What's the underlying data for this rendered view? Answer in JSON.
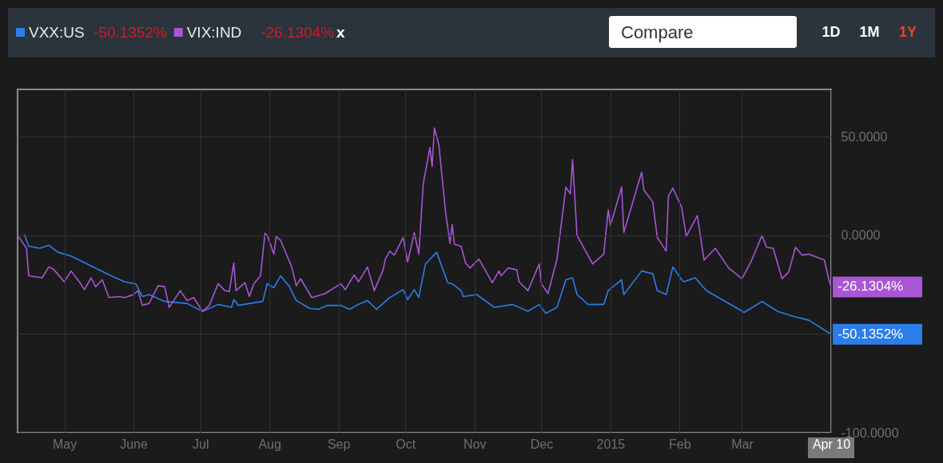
{
  "chart_data": {
    "type": "line",
    "legend": "top left",
    "grid": true,
    "line_style": "solid",
    "xlim": [
      "2014-04-10",
      "2015-04-10"
    ],
    "ylim": [
      -100,
      74
    ],
    "xticks": [
      {
        "value": "2014-05-01",
        "label": "May"
      },
      {
        "value": "2014-06-01",
        "label": "June"
      },
      {
        "value": "2014-07-01",
        "label": "Jul"
      },
      {
        "value": "2014-08-01",
        "label": "Aug"
      },
      {
        "value": "2014-09-01",
        "label": "Sep"
      },
      {
        "value": "2014-10-01",
        "label": "Oct"
      },
      {
        "value": "2014-11-01",
        "label": "Nov"
      },
      {
        "value": "2014-12-01",
        "label": "Dec"
      },
      {
        "value": "2015-01-01",
        "label": "2015"
      },
      {
        "value": "2015-02-01",
        "label": "Feb"
      },
      {
        "value": "2015-03-01",
        "label": "Mar"
      },
      {
        "value": "2015-04-10",
        "label": "Apr 10"
      }
    ],
    "yticks": [
      {
        "value": 50,
        "label": "50.0000"
      },
      {
        "value": 0,
        "label": "0.0000"
      },
      {
        "value": -50,
        "label": null
      },
      {
        "value": -100,
        "label": "-100.0000"
      }
    ],
    "annotations": [
      {
        "text": "-50.1352%",
        "x": "2015-04-10",
        "y": -50.1352
      },
      {
        "text": "-26.1304%",
        "x": "2015-04-10",
        "y": -26.1304
      },
      "-50.1352%",
      "-26.1304%",
      "x",
      "Compare",
      "1D",
      "1M",
      "1Y"
    ],
    "series": [
      {
        "name": "VXX:US",
        "color": "#2b7de9",
        "x": [
          "2014-04-13",
          "2014-04-15",
          "2014-04-20",
          "2014-04-24",
          "2014-04-28",
          "2014-05-04",
          "2014-05-14",
          "2014-05-22",
          "2014-05-28",
          "2014-06-02",
          "2014-06-05",
          "2014-06-08",
          "2014-06-15",
          "2014-06-25",
          "2014-07-02",
          "2014-07-09",
          "2014-07-15",
          "2014-07-16",
          "2014-07-18",
          "2014-07-23",
          "2014-07-29",
          "2014-07-31",
          "2014-08-03",
          "2014-08-06",
          "2014-08-10",
          "2014-08-13",
          "2014-08-19",
          "2014-08-23",
          "2014-08-27",
          "2014-09-02",
          "2014-09-06",
          "2014-09-09",
          "2014-09-14",
          "2014-09-18",
          "2014-09-24",
          "2014-09-30",
          "2014-10-02",
          "2014-10-05",
          "2014-10-07",
          "2014-10-10",
          "2014-10-15",
          "2014-10-20",
          "2014-10-22",
          "2014-10-26",
          "2014-10-27",
          "2014-11-02",
          "2014-11-10",
          "2014-11-18",
          "2014-11-25",
          "2014-11-30",
          "2014-12-03",
          "2014-12-08",
          "2014-12-12",
          "2014-12-15",
          "2014-12-17",
          "2014-12-22",
          "2014-12-29",
          "2014-12-31",
          "2015-01-06",
          "2015-01-07",
          "2015-01-15",
          "2015-01-20",
          "2015-01-22",
          "2015-01-26",
          "2015-01-29",
          "2015-02-02",
          "2015-02-03",
          "2015-02-08",
          "2015-02-13",
          "2015-02-20",
          "2015-03-02",
          "2015-03-05",
          "2015-03-10",
          "2015-03-17",
          "2015-03-24",
          "2015-03-31",
          "2015-04-10"
        ],
        "values": [
          0.5,
          -5.5,
          -6.5,
          -5,
          -8.5,
          -10.5,
          -16,
          -20.5,
          -23.5,
          -24.5,
          -31,
          -30,
          -33.5,
          -34.5,
          -38.5,
          -35,
          -36.5,
          -32.5,
          -35.5,
          -34.5,
          -33.5,
          -24.5,
          -26.5,
          -20.5,
          -26,
          -33,
          -37,
          -37.5,
          -35.5,
          -35.5,
          -37.5,
          -35.5,
          -33,
          -37.5,
          -31.5,
          -27.5,
          -32.5,
          -27.5,
          -31.5,
          -14.5,
          -8.5,
          -24,
          -24.5,
          -28,
          -31,
          -30,
          -36.5,
          -35,
          -38.5,
          -35,
          -39.5,
          -36.5,
          -22.5,
          -21.5,
          -30,
          -35,
          -35,
          -28,
          -22.5,
          -30,
          -18,
          -19.5,
          -28,
          -30,
          -16,
          -22.5,
          -23.5,
          -21.5,
          -28,
          -32.5,
          -39,
          -37,
          -33.5,
          -38.5,
          -41,
          -43,
          -50.1352
        ]
      },
      {
        "name": "VIX:IND",
        "color": "#a855d6",
        "x": [
          "2014-04-10",
          "2014-04-14",
          "2014-04-15",
          "2014-04-21",
          "2014-04-24",
          "2014-04-26",
          "2014-05-01",
          "2014-05-04",
          "2014-05-08",
          "2014-05-10",
          "2014-05-13",
          "2014-05-15",
          "2014-05-18",
          "2014-05-21",
          "2014-05-25",
          "2014-05-28",
          "2014-06-01",
          "2014-06-03",
          "2014-06-05",
          "2014-06-08",
          "2014-06-12",
          "2014-06-15",
          "2014-06-17",
          "2014-06-22",
          "2014-06-25",
          "2014-06-28",
          "2014-07-02",
          "2014-07-05",
          "2014-07-09",
          "2014-07-12",
          "2014-07-14",
          "2014-07-16",
          "2014-07-17",
          "2014-07-21",
          "2014-07-23",
          "2014-07-25",
          "2014-07-28",
          "2014-07-30",
          "2014-07-31",
          "2014-08-03",
          "2014-08-04",
          "2014-08-06",
          "2014-08-11",
          "2014-08-13",
          "2014-08-15",
          "2014-08-20",
          "2014-08-26",
          "2014-09-02",
          "2014-09-04",
          "2014-09-08",
          "2014-09-10",
          "2014-09-14",
          "2014-09-17",
          "2014-09-21",
          "2014-09-22",
          "2014-09-24",
          "2014-09-26",
          "2014-09-30",
          "2014-10-02",
          "2014-10-05",
          "2014-10-07",
          "2014-10-09",
          "2014-10-12",
          "2014-10-13",
          "2014-10-14",
          "2014-10-16",
          "2014-10-19",
          "2014-10-21",
          "2014-10-22",
          "2014-10-23",
          "2014-10-26",
          "2014-10-28",
          "2014-10-30",
          "2014-11-03",
          "2014-11-09",
          "2014-11-12",
          "2014-11-13",
          "2014-11-16",
          "2014-11-20",
          "2014-11-21",
          "2014-11-25",
          "2014-11-30",
          "2014-12-01",
          "2014-12-04",
          "2014-12-08",
          "2014-12-12",
          "2014-12-14",
          "2014-12-15",
          "2014-12-17",
          "2014-12-24",
          "2014-12-29",
          "2014-12-31",
          "2015-01-01",
          "2015-01-06",
          "2015-01-07",
          "2015-01-15",
          "2015-01-16",
          "2015-01-20",
          "2015-01-22",
          "2015-01-26",
          "2015-01-27",
          "2015-01-29",
          "2015-02-02",
          "2015-02-04",
          "2015-02-09",
          "2015-02-12",
          "2015-02-17",
          "2015-02-23",
          "2015-03-01",
          "2015-03-05",
          "2015-03-10",
          "2015-03-12",
          "2015-03-15",
          "2015-03-19",
          "2015-03-22",
          "2015-03-25",
          "2015-03-28",
          "2015-03-31",
          "2015-04-07",
          "2015-04-09",
          "2015-04-10"
        ],
        "values": [
          0,
          -6.5,
          -20.5,
          -21.5,
          -16,
          -17,
          -23.5,
          -18,
          -24,
          -27.5,
          -21.5,
          -26,
          -22.5,
          -31.5,
          -31,
          -31.5,
          -30,
          -28,
          -35.5,
          -34.5,
          -25.5,
          -26,
          -36.5,
          -28,
          -33,
          -31.5,
          -38.5,
          -35.5,
          -24.5,
          -28,
          -28.5,
          -14,
          -28,
          -24,
          -31,
          -24.5,
          -20.5,
          1,
          0,
          -9.5,
          -0.5,
          -2.5,
          -16,
          -25.5,
          -22,
          -31.5,
          -29.5,
          -24.5,
          -27.5,
          -20,
          -23.5,
          -16,
          -28,
          -17.5,
          -12,
          -8,
          -10,
          -1,
          -13.5,
          1.5,
          -9.5,
          26,
          44.5,
          35,
          54.5,
          46,
          12,
          -4,
          5.5,
          -4.5,
          -5.5,
          -14,
          -16.5,
          -12,
          -24,
          -18,
          -20.5,
          -16.5,
          -17.5,
          -23.5,
          -28,
          -14.5,
          -24.5,
          -29.5,
          -12,
          24.5,
          21,
          38.5,
          0,
          -14.5,
          -9.5,
          13,
          5,
          24.5,
          1.5,
          32,
          23,
          17,
          -1,
          -8,
          20,
          24,
          14,
          -0.5,
          10,
          -12.5,
          -6.5,
          -16.5,
          -22,
          -13.5,
          0,
          -6,
          -6.5,
          -22,
          -18.5,
          -6,
          -10,
          -9.5,
          -12.5,
          -22.5,
          -26.1304
        ]
      }
    ]
  }
}
